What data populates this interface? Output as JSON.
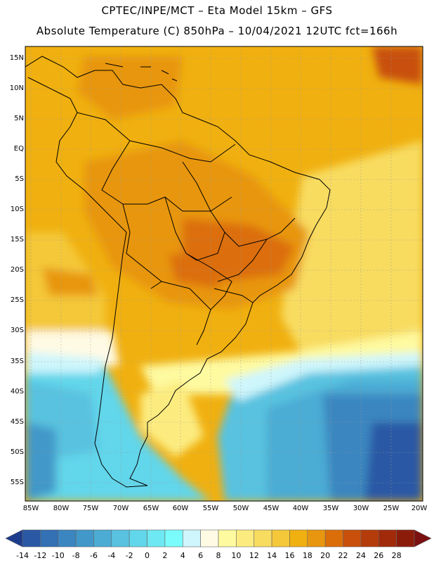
{
  "header": {
    "line1": "CPTEC/INPE/MCT –  Eta Model 15km – GFS",
    "line2": "Absolute Temperature (C) 850hPa – 10/04/2021 12UTC fct=166h"
  },
  "map": {
    "lat_labels": [
      "15N",
      "10N",
      "5N",
      "EQ",
      "5S",
      "10S",
      "15S",
      "20S",
      "25S",
      "30S",
      "35S",
      "40S",
      "45S",
      "50S",
      "55S"
    ],
    "lon_labels": [
      "85W",
      "80W",
      "75W",
      "70W",
      "65W",
      "60W",
      "55W",
      "50W",
      "45W",
      "40W",
      "35W",
      "30W",
      "25W",
      "20W"
    ]
  },
  "colorbar": {
    "labels": [
      "-14",
      "-12",
      "-10",
      "-8",
      "-6",
      "-4",
      "-2",
      "0",
      "2",
      "4",
      "6",
      "8",
      "10",
      "12",
      "14",
      "16",
      "18",
      "20",
      "22",
      "24",
      "26",
      "28"
    ],
    "colors": [
      "#1e3c8c",
      "#2a58a4",
      "#3370b4",
      "#3b86c0",
      "#4298c8",
      "#4cacd4",
      "#58c2e0",
      "#62d6ea",
      "#6ee8f2",
      "#7afcfc",
      "#cef6fc",
      "#fffae4",
      "#fefaa0",
      "#fcec80",
      "#f8dc60",
      "#f4c838",
      "#f0b010",
      "#e89610",
      "#dc6e0a",
      "#c8500a",
      "#b43c0a",
      "#a02a0a",
      "#8c1c0a",
      "#7a1010"
    ]
  }
}
